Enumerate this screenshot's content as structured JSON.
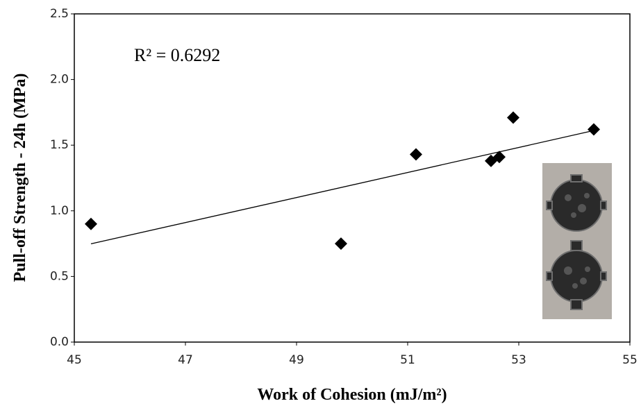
{
  "chart_data": {
    "type": "scatter",
    "x_label": "Work of Cohesion (mJ/m²)",
    "y_label": "Pull-off Strength - 24h (MPa)",
    "annotation": "R² = 0.6292",
    "x": [
      45.3,
      49.8,
      51.15,
      52.5,
      52.65,
      52.9,
      54.35
    ],
    "values": [
      0.9,
      0.75,
      1.43,
      1.38,
      1.41,
      1.71,
      1.62
    ],
    "color": "#000000",
    "trendline": true,
    "xlim": [
      45,
      55
    ],
    "xticks": [
      45,
      47,
      49,
      51,
      53,
      55
    ],
    "ylim": [
      0,
      2.5
    ],
    "yticks": [
      {
        "value": 0,
        "label": "0.0"
      },
      0.5,
      {
        "value": 1,
        "label": "1.0"
      },
      1.5,
      {
        "value": 2,
        "label": "2.0"
      },
      2.5
    ],
    "grid": false
  }
}
